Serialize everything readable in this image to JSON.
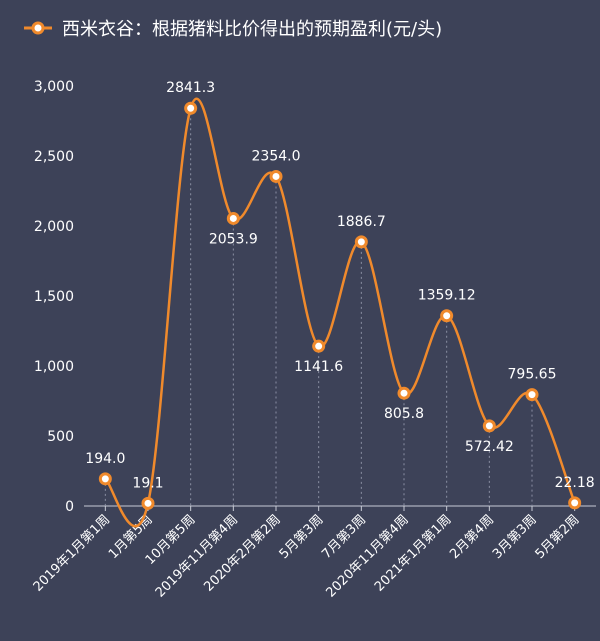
{
  "chart_data": {
    "type": "line",
    "legend": "西米衣谷：根据猪料比价得出的预期盈利(元/头)",
    "legend_position": "top-left",
    "line_color": "#f08a2c",
    "background_color": "#3d4258",
    "smooth": true,
    "grid": false,
    "ylim": [
      0,
      3000
    ],
    "yticks": [
      "0",
      "500",
      "1,000",
      "1,500",
      "2,000",
      "2,500",
      "3,000"
    ],
    "categories": [
      "2019年1月第1周",
      "1月第5周",
      "10月第5周",
      "2019年11月第4周",
      "2020年2月第2周",
      "5月第3周",
      "7月第3周",
      "2020年11月第4周",
      "2021年1月第1周",
      "2月第4周",
      "3月第3周",
      "5月第2周"
    ],
    "values": [
      194.0,
      19.1,
      2841.3,
      2053.9,
      2354.0,
      1141.6,
      1886.7,
      805.8,
      1359.12,
      572.42,
      795.65,
      22.18
    ],
    "labels": [
      "194.0",
      "19.1",
      "2841.3",
      "2053.9",
      "2354.0",
      "1141.6",
      "1886.7",
      "805.8",
      "1359.12",
      "572.42",
      "795.65",
      "22.18"
    ],
    "label_positions": [
      "above",
      "above",
      "above",
      "below",
      "above",
      "below",
      "above",
      "below",
      "above",
      "below",
      "above",
      "above"
    ]
  }
}
